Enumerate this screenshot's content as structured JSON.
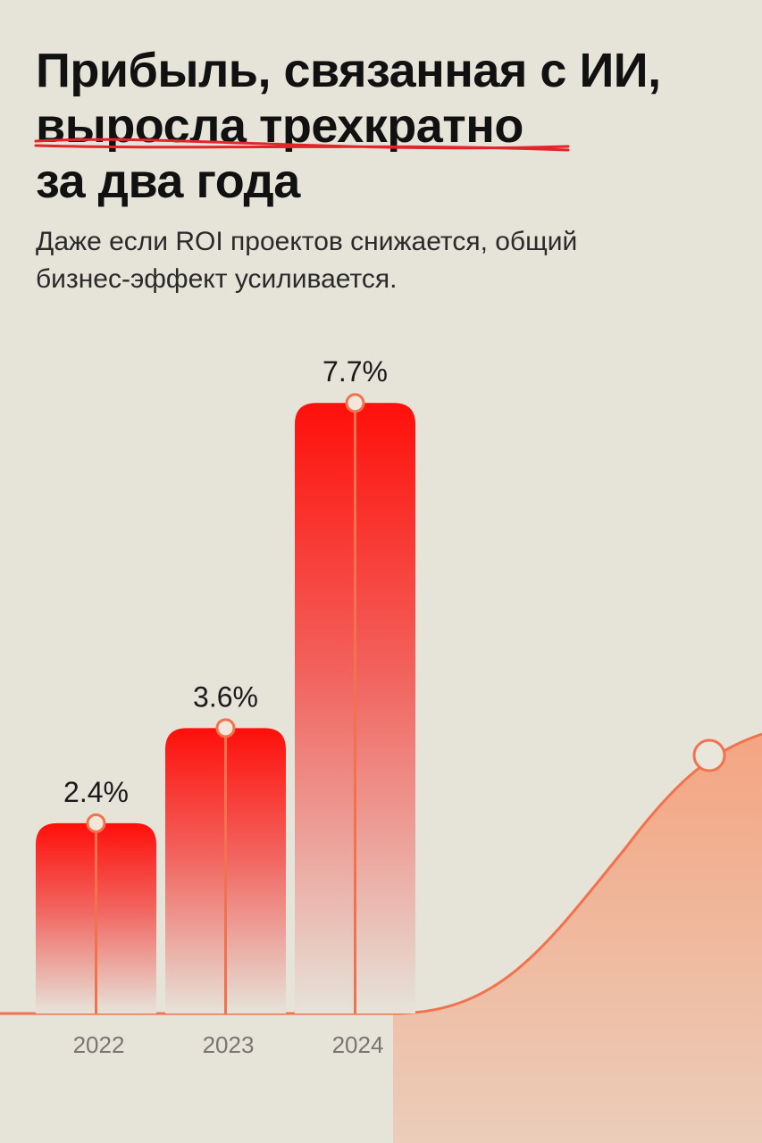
{
  "title": {
    "line1": "Прибыль, связанная с ИИ,",
    "line2": "выросла трехкратно",
    "line3": "за два года"
  },
  "subtitle": {
    "line1": "Даже если ROI проектов снижается, общий",
    "line2": "бизнес-эффект усиливается."
  },
  "colors": {
    "bar_top": "#ff0f0a",
    "bar_bottom": "#e6e3d9",
    "accent_line": "#f2724e",
    "underline": "#e2252a",
    "area_fill": "#f4a582"
  },
  "chart_data": {
    "type": "bar",
    "categories": [
      "2022",
      "2023",
      "2024"
    ],
    "values": [
      2.4,
      3.6,
      7.7
    ],
    "value_labels": [
      "2.4%",
      "3.6%",
      "7.7%"
    ],
    "unit": "%",
    "ylim": [
      0,
      8
    ],
    "grid": false,
    "legend": "none",
    "title": "Прибыль, связанная с ИИ, выросла трехкратно за два года"
  }
}
